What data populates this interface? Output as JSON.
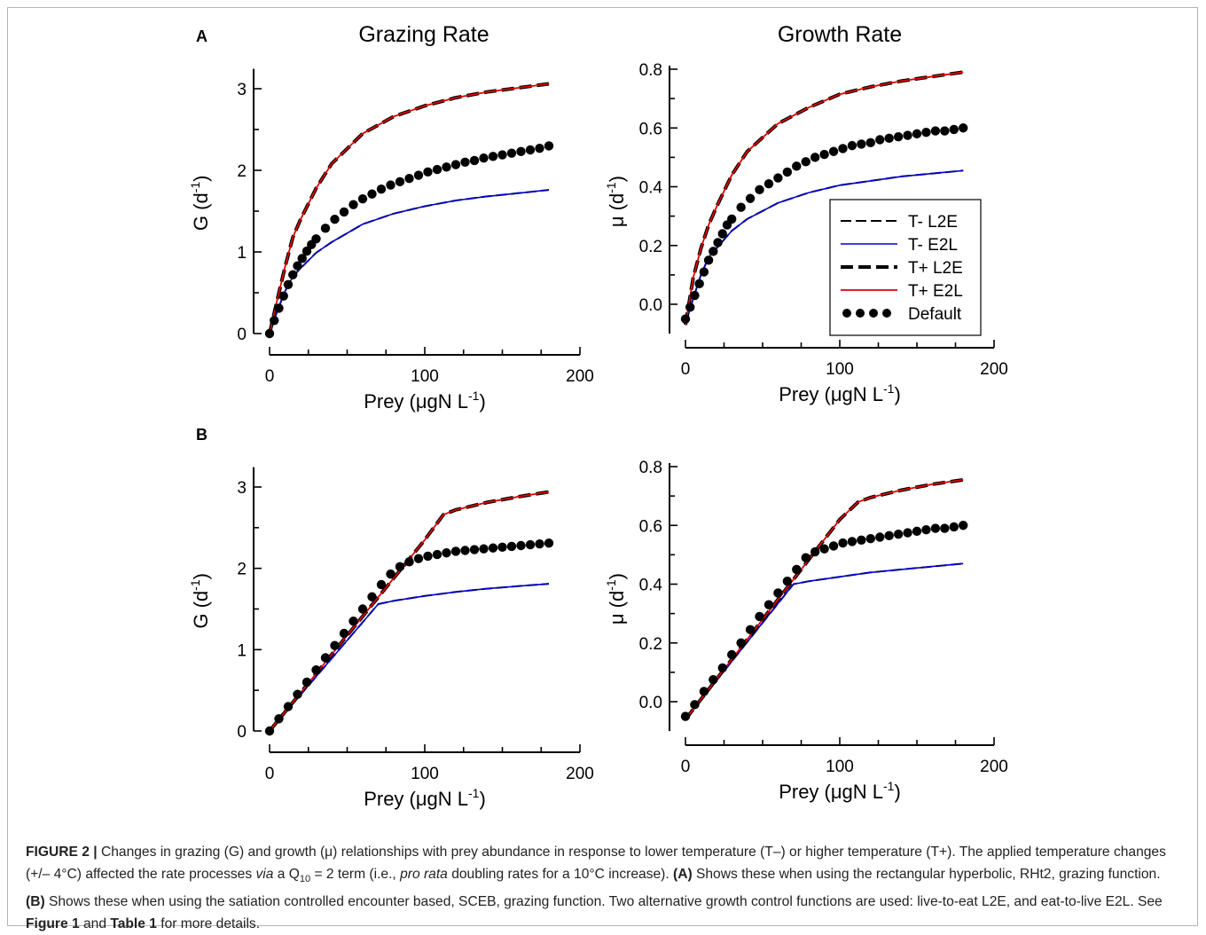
{
  "panel_letters": [
    "A",
    "B"
  ],
  "column_titles": [
    "Grazing Rate",
    "Growth Rate"
  ],
  "legend": [
    {
      "label": "T- L2E",
      "style": "dash-thin",
      "color": "#000000"
    },
    {
      "label": "T- E2L",
      "style": "solid-thin",
      "color": "#0000cc"
    },
    {
      "label": "T+ L2E",
      "style": "dash-thick",
      "color": "#000000"
    },
    {
      "label": "T+ E2L",
      "style": "solid-red",
      "color": "#e00000"
    },
    {
      "label": "Default",
      "style": "dots",
      "color": "#000000"
    }
  ],
  "chart_data": [
    {
      "id": "A-grazing",
      "type": "line",
      "panel": "A",
      "title": "Grazing Rate",
      "xlabel": "Prey (μgN L-1)",
      "ylabel": "G (d-1)",
      "xlim": [
        0,
        200
      ],
      "ylim": [
        0,
        3.2
      ],
      "xticks": [
        0,
        100,
        200
      ],
      "xticks_minor": [
        0,
        25,
        50,
        75,
        100,
        125,
        150,
        175,
        200
      ],
      "yticks": [
        0,
        1,
        2,
        3
      ],
      "yticks_minor": [
        0,
        0.5,
        1,
        1.5,
        2,
        2.5,
        3
      ],
      "series": [
        {
          "name": "T- L2E",
          "x": [
            0,
            5,
            10,
            15,
            20,
            30,
            40,
            60,
            80,
            100,
            120,
            140,
            160,
            180
          ],
          "y": [
            0,
            0.28,
            0.52,
            0.7,
            0.8,
            0.99,
            1.12,
            1.34,
            1.47,
            1.56,
            1.63,
            1.68,
            1.72,
            1.76
          ]
        },
        {
          "name": "T- E2L",
          "x": [
            0,
            5,
            10,
            15,
            20,
            30,
            40,
            60,
            80,
            100,
            120,
            140,
            160,
            180
          ],
          "y": [
            0,
            0.28,
            0.52,
            0.7,
            0.8,
            0.99,
            1.12,
            1.34,
            1.47,
            1.56,
            1.63,
            1.68,
            1.72,
            1.76
          ]
        },
        {
          "name": "T+ L2E",
          "x": [
            0,
            5,
            10,
            15,
            20,
            30,
            40,
            60,
            80,
            100,
            120,
            140,
            160,
            180
          ],
          "y": [
            0,
            0.42,
            0.82,
            1.18,
            1.4,
            1.78,
            2.08,
            2.45,
            2.66,
            2.79,
            2.89,
            2.96,
            3.01,
            3.06
          ]
        },
        {
          "name": "T+ E2L",
          "x": [
            0,
            5,
            10,
            15,
            20,
            30,
            40,
            60,
            80,
            100,
            120,
            140,
            160,
            180
          ],
          "y": [
            0,
            0.42,
            0.82,
            1.18,
            1.4,
            1.78,
            2.08,
            2.45,
            2.66,
            2.79,
            2.89,
            2.96,
            3.01,
            3.06
          ]
        },
        {
          "name": "Default",
          "x": [
            0,
            3,
            6,
            9,
            12,
            15,
            18,
            21,
            24,
            27,
            30,
            36,
            42,
            48,
            54,
            60,
            66,
            72,
            78,
            84,
            90,
            96,
            102,
            108,
            114,
            120,
            126,
            132,
            138,
            144,
            150,
            156,
            162,
            168,
            174,
            180
          ],
          "y": [
            0,
            0.16,
            0.31,
            0.46,
            0.6,
            0.72,
            0.83,
            0.92,
            1.01,
            1.09,
            1.16,
            1.29,
            1.4,
            1.49,
            1.58,
            1.65,
            1.71,
            1.77,
            1.82,
            1.86,
            1.9,
            1.94,
            1.98,
            2.01,
            2.04,
            2.07,
            2.1,
            2.12,
            2.15,
            2.17,
            2.19,
            2.21,
            2.23,
            2.25,
            2.27,
            2.3
          ]
        }
      ]
    },
    {
      "id": "A-growth",
      "type": "line",
      "panel": "A",
      "title": "Growth Rate",
      "xlabel": "Prey (μgN L-1)",
      "ylabel": "μ (d-1)",
      "xlim": [
        0,
        200
      ],
      "ylim": [
        -0.1,
        0.8
      ],
      "xticks": [
        0,
        100,
        200
      ],
      "xticks_minor": [
        0,
        25,
        50,
        75,
        100,
        125,
        150,
        175,
        200
      ],
      "yticks": [
        0.0,
        0.2,
        0.4,
        0.6,
        0.8
      ],
      "yticks_minor": [
        0,
        0.1,
        0.2,
        0.3,
        0.4,
        0.5,
        0.6,
        0.7,
        0.8
      ],
      "series": [
        {
          "name": "T- L2E",
          "x": [
            0,
            5,
            10,
            15,
            20,
            30,
            40,
            60,
            80,
            100,
            120,
            140,
            160,
            180
          ],
          "y": [
            -0.07,
            0.02,
            0.1,
            0.16,
            0.19,
            0.25,
            0.29,
            0.345,
            0.38,
            0.405,
            0.42,
            0.435,
            0.445,
            0.455
          ]
        },
        {
          "name": "T- E2L",
          "x": [
            0,
            5,
            10,
            15,
            20,
            30,
            40,
            60,
            80,
            100,
            120,
            140,
            160,
            180
          ],
          "y": [
            -0.07,
            0.02,
            0.1,
            0.16,
            0.19,
            0.25,
            0.29,
            0.345,
            0.38,
            0.405,
            0.42,
            0.435,
            0.445,
            0.455
          ]
        },
        {
          "name": "T+ L2E",
          "x": [
            0,
            5,
            10,
            15,
            20,
            30,
            40,
            60,
            80,
            100,
            120,
            140,
            160,
            180
          ],
          "y": [
            -0.07,
            0.09,
            0.19,
            0.27,
            0.33,
            0.44,
            0.52,
            0.615,
            0.67,
            0.715,
            0.74,
            0.76,
            0.775,
            0.79
          ]
        },
        {
          "name": "T+ E2L",
          "x": [
            0,
            5,
            10,
            15,
            20,
            30,
            40,
            60,
            80,
            100,
            120,
            140,
            160,
            180
          ],
          "y": [
            -0.07,
            0.09,
            0.19,
            0.27,
            0.33,
            0.44,
            0.52,
            0.615,
            0.67,
            0.715,
            0.74,
            0.76,
            0.775,
            0.79
          ]
        },
        {
          "name": "Default",
          "x": [
            0,
            3,
            6,
            9,
            12,
            15,
            18,
            21,
            24,
            27,
            30,
            36,
            42,
            48,
            54,
            60,
            66,
            72,
            78,
            84,
            90,
            96,
            102,
            108,
            114,
            120,
            126,
            132,
            138,
            144,
            150,
            156,
            162,
            168,
            174,
            180
          ],
          "y": [
            -0.05,
            -0.01,
            0.03,
            0.07,
            0.11,
            0.15,
            0.18,
            0.21,
            0.24,
            0.27,
            0.29,
            0.33,
            0.36,
            0.39,
            0.41,
            0.43,
            0.45,
            0.47,
            0.485,
            0.5,
            0.51,
            0.52,
            0.53,
            0.54,
            0.545,
            0.55,
            0.56,
            0.565,
            0.57,
            0.575,
            0.58,
            0.585,
            0.59,
            0.59,
            0.595,
            0.6
          ]
        }
      ]
    },
    {
      "id": "B-grazing",
      "type": "line",
      "panel": "B",
      "xlabel": "Prey (μgN L-1)",
      "ylabel": "G (d-1)",
      "xlim": [
        0,
        200
      ],
      "ylim": [
        0,
        3.2
      ],
      "xticks": [
        0,
        100,
        200
      ],
      "xticks_minor": [
        0,
        25,
        50,
        75,
        100,
        125,
        150,
        175,
        200
      ],
      "yticks": [
        0,
        1,
        2,
        3
      ],
      "yticks_minor": [
        0,
        0.5,
        1,
        1.5,
        2,
        2.5,
        3
      ],
      "series": [
        {
          "name": "T- L2E",
          "x": [
            0,
            70,
            80,
            100,
            120,
            140,
            160,
            180
          ],
          "y": [
            0,
            1.56,
            1.6,
            1.66,
            1.71,
            1.75,
            1.78,
            1.81
          ]
        },
        {
          "name": "T- E2L",
          "x": [
            0,
            70,
            80,
            100,
            120,
            140,
            160,
            180
          ],
          "y": [
            0,
            1.56,
            1.6,
            1.66,
            1.71,
            1.75,
            1.78,
            1.81
          ]
        },
        {
          "name": "T+ L2E",
          "x": [
            0,
            100,
            112,
            120,
            140,
            160,
            180
          ],
          "y": [
            0,
            2.35,
            2.66,
            2.72,
            2.81,
            2.88,
            2.94
          ]
        },
        {
          "name": "T+ E2L",
          "x": [
            0,
            100,
            112,
            120,
            140,
            160,
            180
          ],
          "y": [
            0,
            2.35,
            2.66,
            2.72,
            2.81,
            2.88,
            2.94
          ]
        },
        {
          "name": "Default",
          "x": [
            0,
            6,
            12,
            18,
            24,
            30,
            36,
            42,
            48,
            54,
            60,
            66,
            72,
            78,
            84,
            90,
            96,
            102,
            108,
            114,
            120,
            126,
            132,
            138,
            144,
            150,
            156,
            162,
            168,
            174,
            180
          ],
          "y": [
            0,
            0.15,
            0.3,
            0.45,
            0.6,
            0.75,
            0.9,
            1.05,
            1.2,
            1.35,
            1.5,
            1.65,
            1.8,
            1.93,
            2.02,
            2.08,
            2.12,
            2.15,
            2.17,
            2.19,
            2.21,
            2.22,
            2.23,
            2.24,
            2.25,
            2.26,
            2.27,
            2.28,
            2.29,
            2.3,
            2.31
          ]
        }
      ]
    },
    {
      "id": "B-growth",
      "type": "line",
      "panel": "B",
      "xlabel": "Prey (μgN L-1)",
      "ylabel": "μ (d-1)",
      "xlim": [
        0,
        200
      ],
      "ylim": [
        -0.1,
        0.8
      ],
      "xticks": [
        0,
        100,
        200
      ],
      "xticks_minor": [
        0,
        25,
        50,
        75,
        100,
        125,
        150,
        175,
        200
      ],
      "yticks": [
        0.0,
        0.2,
        0.4,
        0.6,
        0.8
      ],
      "yticks_minor": [
        0,
        0.1,
        0.2,
        0.3,
        0.4,
        0.5,
        0.6,
        0.7,
        0.8
      ],
      "series": [
        {
          "name": "T- L2E",
          "x": [
            0,
            70,
            80,
            100,
            120,
            140,
            160,
            180
          ],
          "y": [
            -0.06,
            0.4,
            0.41,
            0.425,
            0.44,
            0.45,
            0.46,
            0.47
          ]
        },
        {
          "name": "T- E2L",
          "x": [
            0,
            70,
            80,
            100,
            120,
            140,
            160,
            180
          ],
          "y": [
            -0.06,
            0.4,
            0.41,
            0.425,
            0.44,
            0.45,
            0.46,
            0.47
          ]
        },
        {
          "name": "T+ L2E",
          "x": [
            0,
            100,
            112,
            120,
            140,
            160,
            180
          ],
          "y": [
            -0.06,
            0.62,
            0.68,
            0.695,
            0.72,
            0.74,
            0.755
          ]
        },
        {
          "name": "T+ E2L",
          "x": [
            0,
            100,
            112,
            120,
            140,
            160,
            180
          ],
          "y": [
            -0.06,
            0.62,
            0.68,
            0.695,
            0.72,
            0.74,
            0.755
          ]
        },
        {
          "name": "Default",
          "x": [
            0,
            6,
            12,
            18,
            24,
            30,
            36,
            42,
            48,
            54,
            60,
            66,
            72,
            78,
            84,
            90,
            96,
            102,
            108,
            114,
            120,
            126,
            132,
            138,
            144,
            150,
            156,
            162,
            168,
            174,
            180
          ],
          "y": [
            -0.05,
            -0.01,
            0.035,
            0.075,
            0.115,
            0.16,
            0.2,
            0.245,
            0.29,
            0.33,
            0.37,
            0.41,
            0.45,
            0.49,
            0.51,
            0.52,
            0.53,
            0.54,
            0.545,
            0.55,
            0.555,
            0.56,
            0.565,
            0.57,
            0.575,
            0.58,
            0.585,
            0.59,
            0.59,
            0.595,
            0.6
          ]
        }
      ]
    }
  ],
  "caption": {
    "label": "FIGURE 2 |",
    "t1": " Changes in grazing (G) and growth (μ) relationships with prey abundance in response to lower temperature (T–) or higher temperature (T+). The applied temperature changes (+/– 4°C) affected the rate processes ",
    "via": "via",
    "t2": " a Q",
    "q10sub": "10",
    "t3": " = 2 term (i.e., ",
    "prorata": "pro rata",
    "t4": " doubling rates for a 10°C increase). ",
    "a_label": "(A)",
    "t5": " Shows these when using the rectangular hyperbolic, RHt2, grazing function. ",
    "b_label": "(B)",
    "t6": " Shows these when using the satiation controlled encounter based, SCEB, grazing function. Two alternative growth control functions are used: live-to-eat L2E, and eat-to-live E2L. See ",
    "fig1": "Figure 1",
    "t7": " and ",
    "table1": "Table 1",
    "t8": " for more details."
  }
}
